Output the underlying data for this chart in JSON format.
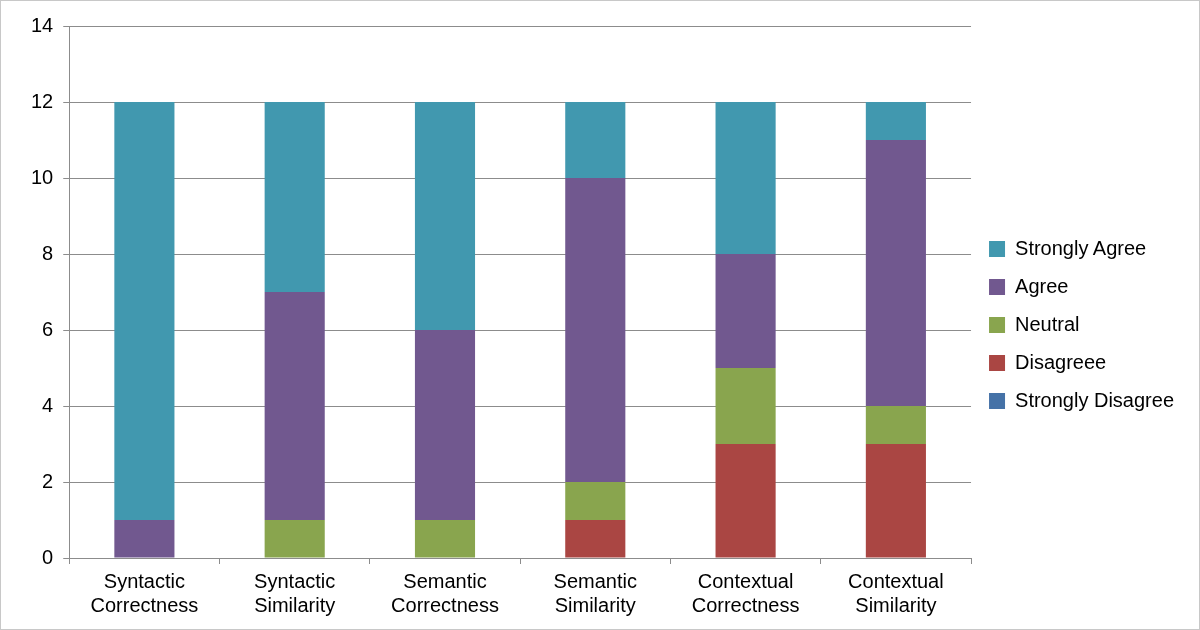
{
  "chart_data": {
    "type": "bar",
    "stacked": true,
    "categories": [
      "Syntactic Correctness",
      "Syntactic Similarity",
      "Semantic Correctness",
      "Semantic Similarity",
      "Contextual Correctness",
      "Contextual Similarity"
    ],
    "series": [
      {
        "name": "Strongly Disagree",
        "color": "#4572a7",
        "values": [
          0,
          0,
          0,
          0,
          0,
          0
        ]
      },
      {
        "name": "Disagreee",
        "color": "#aa4643",
        "values": [
          0,
          0,
          0,
          1,
          3,
          3
        ]
      },
      {
        "name": "Neutral",
        "color": "#89a54e",
        "values": [
          0,
          1,
          1,
          1,
          2,
          1
        ]
      },
      {
        "name": "Agree",
        "color": "#71588f",
        "values": [
          1,
          6,
          5,
          8,
          3,
          7
        ]
      },
      {
        "name": "Strongly Agree",
        "color": "#4198af",
        "values": [
          11,
          5,
          6,
          2,
          4,
          1
        ]
      }
    ],
    "ylim": [
      0,
      14
    ],
    "yticks": [
      0,
      2,
      4,
      6,
      8,
      10,
      12,
      14
    ],
    "grid": "y",
    "legend": "right"
  }
}
